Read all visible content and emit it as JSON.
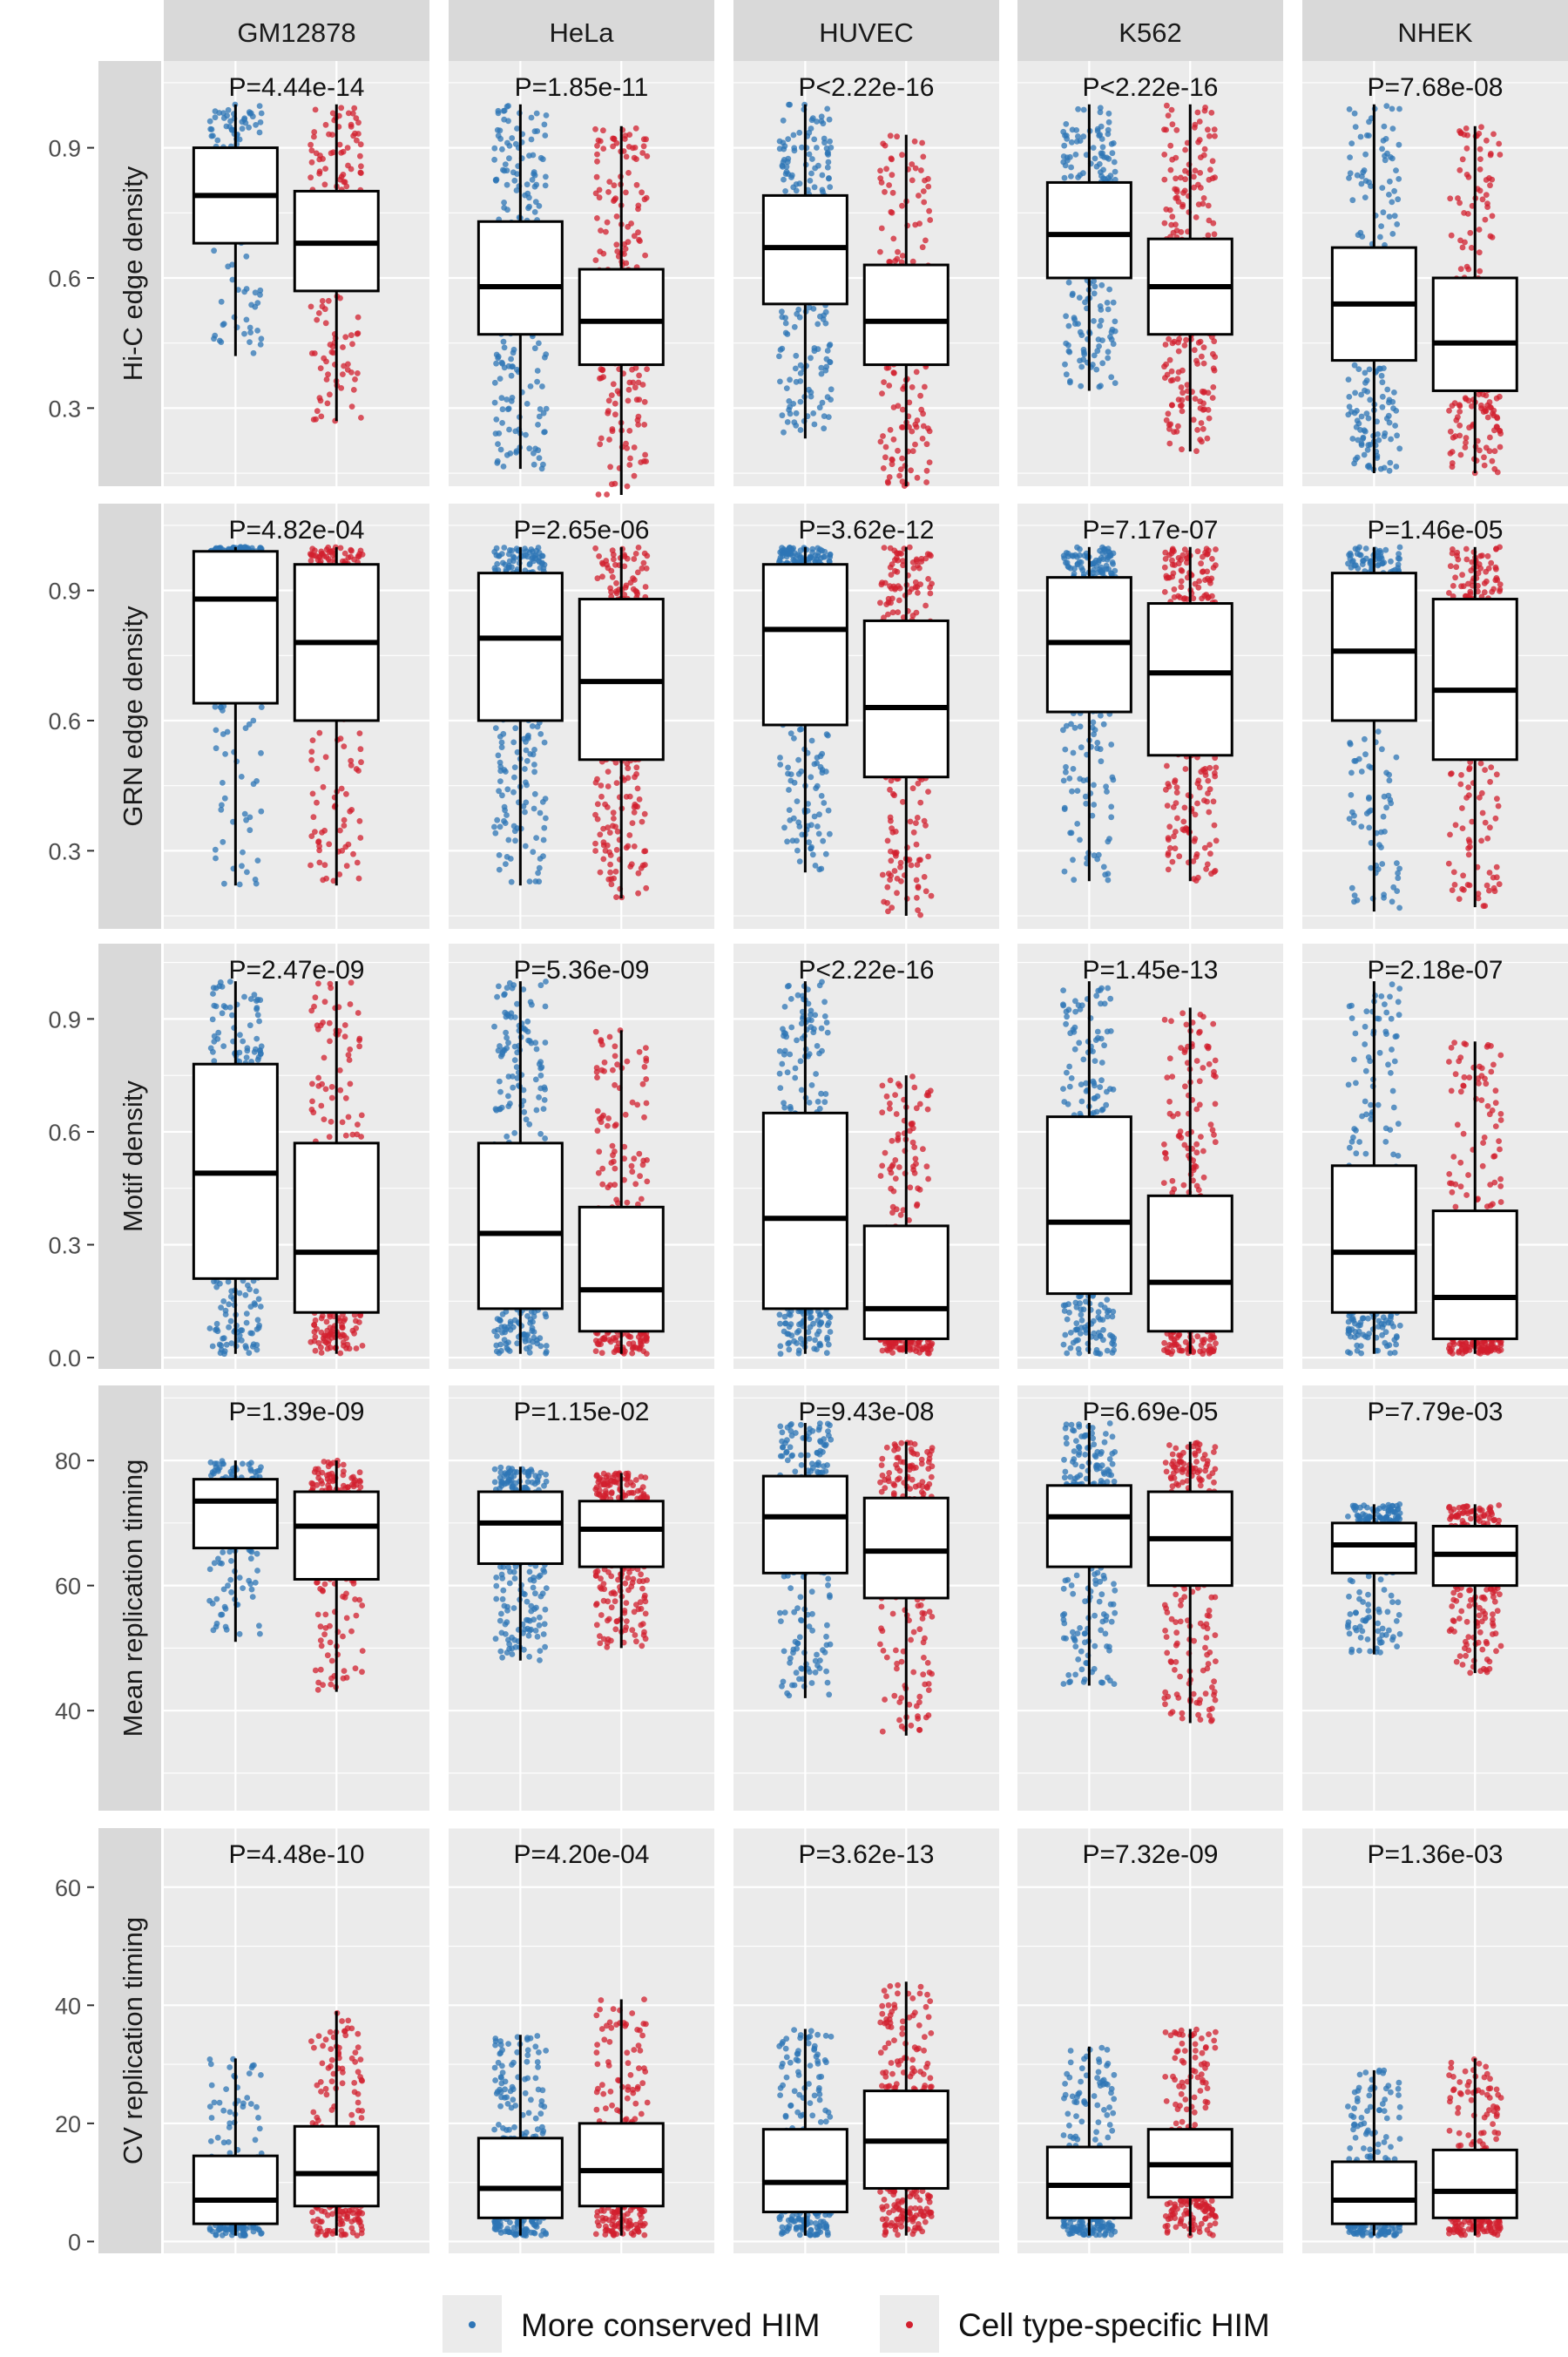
{
  "chart_data": {
    "type": "boxplot",
    "facet_columns": [
      "GM12878",
      "HeLa",
      "HUVEC",
      "K562",
      "NHEK"
    ],
    "legend": {
      "position": "bottom",
      "entries": [
        {
          "label": "More conserved HIM",
          "color": "#2E75B6"
        },
        {
          "label": "Cell type-specific HIM",
          "color": "#D21F2E"
        }
      ]
    },
    "groups": [
      "More conserved HIM",
      "Cell type-specific HIM"
    ],
    "colors": {
      "conserved": "#2E75B6",
      "specific": "#D21F2E",
      "panel_bg": "#EBEBEB",
      "strip_bg": "#D9D9D9"
    },
    "rows": [
      {
        "ylabel": "Hi-C edge density",
        "ylim": [
          0.12,
          1.1
        ],
        "yticks": [
          "0.3",
          "0.6",
          "0.9"
        ],
        "ytick_values": [
          0.3,
          0.6,
          0.9
        ],
        "pvalues": [
          "P=4.44e-14",
          "P=1.85e-11",
          "P<2.22e-16",
          "P<2.22e-16",
          "P=7.68e-08"
        ],
        "boxes": [
          [
            {
              "min": 0.42,
              "q1": 0.68,
              "median": 0.79,
              "q3": 0.9,
              "max": 1.0,
              "n": 150
            },
            {
              "min": 0.27,
              "q1": 0.57,
              "median": 0.68,
              "q3": 0.8,
              "max": 1.0,
              "n": 220
            }
          ],
          [
            {
              "min": 0.16,
              "q1": 0.47,
              "median": 0.58,
              "q3": 0.73,
              "max": 1.0,
              "n": 300
            },
            {
              "min": 0.1,
              "q1": 0.4,
              "median": 0.5,
              "q3": 0.62,
              "max": 0.95,
              "n": 300
            }
          ],
          [
            {
              "min": 0.23,
              "q1": 0.54,
              "median": 0.67,
              "q3": 0.79,
              "max": 1.0,
              "n": 300
            },
            {
              "min": 0.12,
              "q1": 0.4,
              "median": 0.5,
              "q3": 0.63,
              "max": 0.93,
              "n": 220
            }
          ],
          [
            {
              "min": 0.34,
              "q1": 0.6,
              "median": 0.7,
              "q3": 0.82,
              "max": 1.0,
              "n": 260
            },
            {
              "min": 0.2,
              "q1": 0.47,
              "median": 0.58,
              "q3": 0.69,
              "max": 1.0,
              "n": 320
            }
          ],
          [
            {
              "min": 0.15,
              "q1": 0.41,
              "median": 0.54,
              "q3": 0.67,
              "max": 1.0,
              "n": 300
            },
            {
              "min": 0.15,
              "q1": 0.34,
              "median": 0.45,
              "q3": 0.6,
              "max": 0.95,
              "n": 260
            }
          ]
        ]
      },
      {
        "ylabel": "GRN edge density",
        "ylim": [
          0.12,
          1.1
        ],
        "yticks": [
          "0.3",
          "0.6",
          "0.9"
        ],
        "ytick_values": [
          0.3,
          0.6,
          0.9
        ],
        "pvalues": [
          "P=4.82e-04",
          "P=2.65e-06",
          "P=3.62e-12",
          "P=7.17e-07",
          "P=1.46e-05"
        ],
        "boxes": [
          [
            {
              "min": 0.22,
              "q1": 0.64,
              "median": 0.88,
              "q3": 0.99,
              "max": 1.0,
              "n": 170
            },
            {
              "min": 0.22,
              "q1": 0.6,
              "median": 0.78,
              "q3": 0.96,
              "max": 1.0,
              "n": 200
            }
          ],
          [
            {
              "min": 0.22,
              "q1": 0.6,
              "median": 0.79,
              "q3": 0.94,
              "max": 1.0,
              "n": 300
            },
            {
              "min": 0.19,
              "q1": 0.51,
              "median": 0.69,
              "q3": 0.88,
              "max": 1.0,
              "n": 300
            }
          ],
          [
            {
              "min": 0.25,
              "q1": 0.59,
              "median": 0.81,
              "q3": 0.96,
              "max": 1.0,
              "n": 300
            },
            {
              "min": 0.15,
              "q1": 0.47,
              "median": 0.63,
              "q3": 0.83,
              "max": 1.0,
              "n": 300
            }
          ],
          [
            {
              "min": 0.23,
              "q1": 0.62,
              "median": 0.78,
              "q3": 0.93,
              "max": 1.0,
              "n": 300
            },
            {
              "min": 0.23,
              "q1": 0.52,
              "median": 0.71,
              "q3": 0.87,
              "max": 1.0,
              "n": 300
            }
          ],
          [
            {
              "min": 0.16,
              "q1": 0.6,
              "median": 0.76,
              "q3": 0.94,
              "max": 1.0,
              "n": 260
            },
            {
              "min": 0.17,
              "q1": 0.51,
              "median": 0.67,
              "q3": 0.88,
              "max": 1.0,
              "n": 260
            }
          ]
        ]
      },
      {
        "ylabel": "Motif density",
        "ylim": [
          -0.03,
          1.1
        ],
        "yticks": [
          "0.0",
          "0.3",
          "0.6",
          "0.9"
        ],
        "ytick_values": [
          0.0,
          0.3,
          0.6,
          0.9
        ],
        "pvalues": [
          "P=2.47e-09",
          "P=5.36e-09",
          "P<2.22e-16",
          "P=1.45e-13",
          "P=2.18e-07"
        ],
        "boxes": [
          [
            {
              "min": 0.01,
              "q1": 0.21,
              "median": 0.49,
              "q3": 0.78,
              "max": 1.0,
              "n": 260
            },
            {
              "min": 0.01,
              "q1": 0.12,
              "median": 0.28,
              "q3": 0.57,
              "max": 1.0,
              "n": 260
            }
          ],
          [
            {
              "min": 0.01,
              "q1": 0.13,
              "median": 0.33,
              "q3": 0.57,
              "max": 1.0,
              "n": 320
            },
            {
              "min": 0.01,
              "q1": 0.07,
              "median": 0.18,
              "q3": 0.4,
              "max": 0.87,
              "n": 280
            }
          ],
          [
            {
              "min": 0.01,
              "q1": 0.13,
              "median": 0.37,
              "q3": 0.65,
              "max": 1.0,
              "n": 320
            },
            {
              "min": 0.01,
              "q1": 0.05,
              "median": 0.13,
              "q3": 0.35,
              "max": 0.75,
              "n": 260
            }
          ],
          [
            {
              "min": 0.01,
              "q1": 0.17,
              "median": 0.36,
              "q3": 0.64,
              "max": 1.0,
              "n": 320
            },
            {
              "min": 0.01,
              "q1": 0.07,
              "median": 0.2,
              "q3": 0.43,
              "max": 0.93,
              "n": 300
            }
          ],
          [
            {
              "min": 0.01,
              "q1": 0.12,
              "median": 0.28,
              "q3": 0.51,
              "max": 1.0,
              "n": 260
            },
            {
              "min": 0.01,
              "q1": 0.05,
              "median": 0.16,
              "q3": 0.39,
              "max": 0.84,
              "n": 260
            }
          ]
        ]
      },
      {
        "ylabel": "Mean replication timing",
        "ylim": [
          24,
          92
        ],
        "yticks": [
          "40",
          "60",
          "80"
        ],
        "ytick_values": [
          40,
          60,
          80
        ],
        "pvalues": [
          "P=1.39e-09",
          "P=1.15e-02",
          "P=9.43e-08",
          "P=6.69e-05",
          "P=7.79e-03"
        ],
        "boxes": [
          [
            {
              "min": 51,
              "q1": 66,
              "median": 73.5,
              "q3": 77,
              "max": 80,
              "n": 170
            },
            {
              "min": 43,
              "q1": 61,
              "median": 69.5,
              "q3": 75,
              "max": 80,
              "n": 230
            }
          ],
          [
            {
              "min": 48,
              "q1": 63.5,
              "median": 70,
              "q3": 75,
              "max": 79,
              "n": 300
            },
            {
              "min": 50,
              "q1": 63,
              "median": 69,
              "q3": 73.5,
              "max": 78,
              "n": 300
            }
          ],
          [
            {
              "min": 42,
              "q1": 62,
              "median": 71,
              "q3": 77.5,
              "max": 86,
              "n": 300
            },
            {
              "min": 36,
              "q1": 58,
              "median": 65.5,
              "q3": 74,
              "max": 83,
              "n": 260
            }
          ],
          [
            {
              "min": 44,
              "q1": 63,
              "median": 71,
              "q3": 76,
              "max": 86,
              "n": 300
            },
            {
              "min": 38,
              "q1": 60,
              "median": 67.5,
              "q3": 75,
              "max": 83,
              "n": 300
            }
          ],
          [
            {
              "min": 49,
              "q1": 62,
              "median": 66.5,
              "q3": 70,
              "max": 73,
              "n": 260
            },
            {
              "min": 46,
              "q1": 60,
              "median": 65,
              "q3": 69.5,
              "max": 73,
              "n": 260
            }
          ]
        ]
      },
      {
        "ylabel": "CV replication timing",
        "ylim": [
          -2,
          70
        ],
        "yticks": [
          "0",
          "20",
          "40",
          "60"
        ],
        "ytick_values": [
          0,
          20,
          40,
          60
        ],
        "pvalues": [
          "P=4.48e-10",
          "P=4.20e-04",
          "P=3.62e-13",
          "P=7.32e-09",
          "P=1.36e-03"
        ],
        "boxes": [
          [
            {
              "min": 1,
              "q1": 3,
              "median": 7,
              "q3": 14.5,
              "max": 31,
              "n": 200
            },
            {
              "min": 1,
              "q1": 6,
              "median": 11.5,
              "q3": 19.5,
              "max": 39,
              "n": 240
            }
          ],
          [
            {
              "min": 1,
              "q1": 4,
              "median": 9,
              "q3": 17.5,
              "max": 35,
              "n": 300
            },
            {
              "min": 1,
              "q1": 6,
              "median": 12,
              "q3": 20,
              "max": 41,
              "n": 300
            }
          ],
          [
            {
              "min": 1,
              "q1": 5,
              "median": 10,
              "q3": 19,
              "max": 36,
              "n": 300
            },
            {
              "min": 1,
              "q1": 9,
              "median": 17,
              "q3": 25.5,
              "max": 44,
              "n": 300
            }
          ],
          [
            {
              "min": 1,
              "q1": 4,
              "median": 9.5,
              "q3": 16,
              "max": 33,
              "n": 300
            },
            {
              "min": 1,
              "q1": 7.5,
              "median": 13,
              "q3": 19,
              "max": 36,
              "n": 300
            }
          ],
          [
            {
              "min": 1,
              "q1": 3,
              "median": 7,
              "q3": 13.5,
              "max": 29,
              "n": 260
            },
            {
              "min": 1,
              "q1": 4,
              "median": 8.5,
              "q3": 15.5,
              "max": 31,
              "n": 260
            }
          ]
        ]
      }
    ]
  }
}
